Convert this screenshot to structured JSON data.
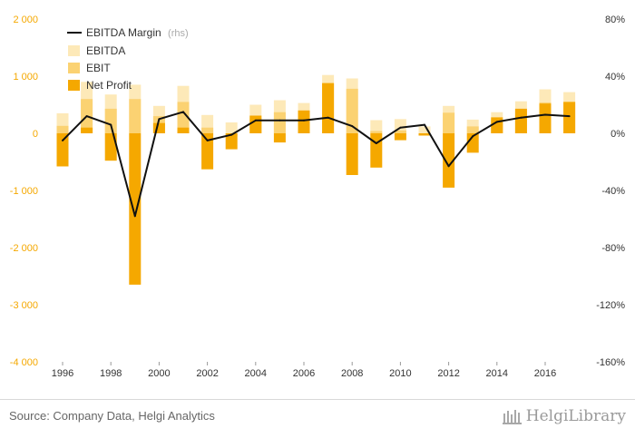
{
  "chart_data": {
    "type": "bar",
    "years": [
      1996,
      1997,
      1998,
      1999,
      2000,
      2001,
      2002,
      2003,
      2004,
      2005,
      2006,
      2007,
      2008,
      2009,
      2010,
      2011,
      2012,
      2013,
      2014,
      2015,
      2016,
      2017
    ],
    "x_tick_labels": [
      "1996",
      "1998",
      "2000",
      "2002",
      "2004",
      "2006",
      "2008",
      "2010",
      "2012",
      "2014",
      "2016"
    ],
    "y_left": {
      "ylim": [
        -4000,
        2000
      ],
      "ticks": [
        -4000,
        -3000,
        -2000,
        -1000,
        0,
        1000,
        2000
      ],
      "tick_labels": [
        "-4 000",
        "-3 000",
        "-2 000",
        "-1 000",
        "0",
        "1 000",
        "2 000"
      ]
    },
    "y_right": {
      "ylim": [
        -160,
        80
      ],
      "ticks": [
        -160,
        -120,
        -80,
        -40,
        0,
        40,
        80
      ],
      "tick_labels": [
        "-160%",
        "-120%",
        "-80%",
        "-40%",
        "0%",
        "40%",
        "80%"
      ]
    },
    "grid": false,
    "legend_position": "top-left",
    "series": [
      {
        "name": "EBITDA",
        "axis": "left",
        "kind": "bar",
        "color": "#fde9b8",
        "values": [
          350,
          900,
          680,
          850,
          480,
          830,
          320,
          190,
          500,
          580,
          530,
          1020,
          960,
          230,
          250,
          120,
          480,
          240,
          370,
          560,
          770,
          720
        ]
      },
      {
        "name": "EBIT",
        "axis": "left",
        "kind": "bar",
        "color": "#fbd272",
        "values": [
          130,
          600,
          430,
          600,
          300,
          550,
          100,
          -50,
          260,
          370,
          380,
          870,
          780,
          40,
          50,
          -40,
          360,
          120,
          240,
          400,
          540,
          550
        ]
      },
      {
        "name": "Net Profit",
        "axis": "left",
        "kind": "bar",
        "color": "#f5a800",
        "values": [
          -580,
          100,
          -480,
          -2650,
          180,
          100,
          -630,
          -280,
          310,
          -160,
          400,
          880,
          -730,
          -600,
          -120,
          -40,
          -950,
          -340,
          280,
          430,
          520,
          550
        ]
      },
      {
        "name": "EBITDA Margin",
        "name_suffix": "(rhs)",
        "axis": "right",
        "kind": "line",
        "color": "#111111",
        "values": [
          -5,
          12,
          6,
          -58,
          10,
          15,
          -5,
          -1,
          9,
          9,
          9,
          11,
          5,
          -7,
          4,
          6,
          -23,
          -2,
          8,
          11,
          13,
          12
        ]
      }
    ]
  },
  "footer": {
    "source": "Source: Company Data, Helgi Analytics",
    "brand": "HelgiLibrary"
  }
}
